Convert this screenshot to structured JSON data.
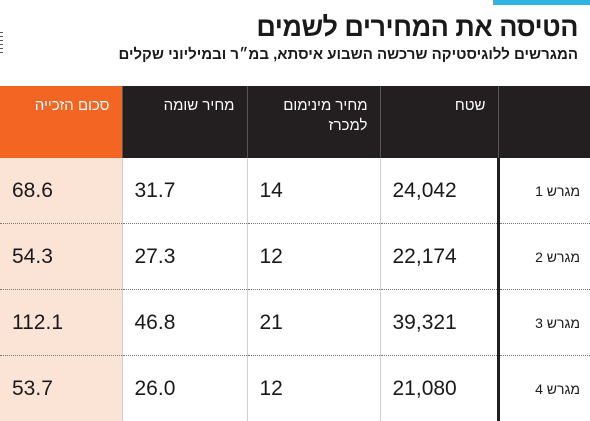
{
  "header": {
    "title": "הטיסה את המחירים לשמים",
    "subtitle": "המגרשים ללוגיסטיקה שרכשה השבוע איסתא, במ״ר ובמיליוני שקלים"
  },
  "colors": {
    "accent": "#2fb4e6",
    "header_bg": "#231f20",
    "total_header_bg": "#f26522",
    "total_cell_bg": "#fbe4d5"
  },
  "chart_data": {
    "type": "table",
    "columns": [
      "שטח",
      "מחיר מינימום למכרז",
      "מחיר שומה",
      "סכום הזכייה"
    ],
    "rows": [
      {
        "label": "מגרש 1",
        "area": "24,042",
        "min_price": "14",
        "appraised": "31.7",
        "total": "68.6"
      },
      {
        "label": "מגרש 2",
        "area": "22,174",
        "min_price": "12",
        "appraised": "27.3",
        "total": "54.3"
      },
      {
        "label": "מגרש 3",
        "area": "39,321",
        "min_price": "21",
        "appraised": "46.8",
        "total": "112.1"
      },
      {
        "label": "מגרש 4",
        "area": "21,080",
        "min_price": "12",
        "appraised": "26.0",
        "total": "53.7"
      }
    ]
  }
}
